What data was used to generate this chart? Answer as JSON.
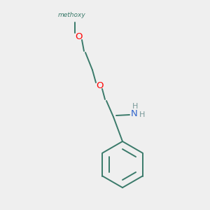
{
  "background_color": "#efefef",
  "bond_color": "#3a7a6a",
  "oxygen_color": "#ff0000",
  "nitrogen_color": "#3366cc",
  "hydrogen_color": "#7a9a9a",
  "figsize": [
    3.0,
    3.0
  ],
  "dpi": 100,
  "methoxy_text": "methoxy",
  "O_label": "O",
  "NH2_N": "N",
  "NH2_H_top": "H",
  "NH2_H_right": "H"
}
